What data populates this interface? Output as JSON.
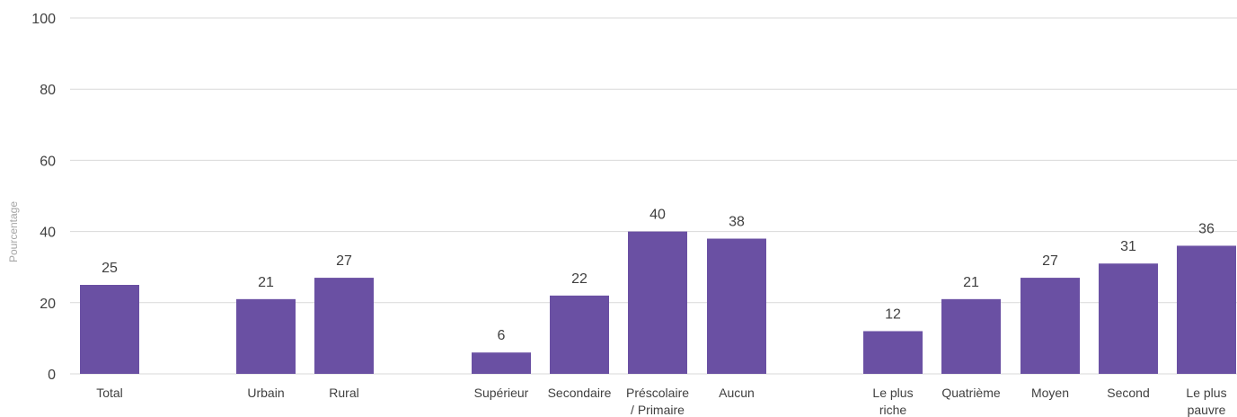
{
  "chart_data": {
    "type": "bar",
    "ylabel": "Pourcentage",
    "ylim": [
      0,
      100
    ],
    "yticks": [
      0,
      20,
      40,
      60,
      80,
      100
    ],
    "grid": true,
    "bar_color": "#6a50a3",
    "categories": [
      [
        "Total"
      ],
      [
        "Urbain"
      ],
      [
        "Rural"
      ],
      [
        "Supérieur"
      ],
      [
        "Secondaire"
      ],
      [
        "Préscolaire",
        "/ Primaire"
      ],
      [
        "Aucun"
      ],
      [
        "Le plus",
        "riche"
      ],
      [
        "Quatrième"
      ],
      [
        "Moyen"
      ],
      [
        "Second"
      ],
      [
        "Le plus",
        "pauvre"
      ]
    ],
    "values": [
      25,
      21,
      27,
      6,
      22,
      40,
      38,
      12,
      21,
      27,
      31,
      36
    ],
    "data_labels": [
      "25",
      "21",
      "27",
      "6",
      "22",
      "40",
      "38",
      "12",
      "21",
      "27",
      "31",
      "36"
    ],
    "groups": [
      [
        0
      ],
      [
        1,
        2
      ],
      [
        3,
        4,
        5,
        6
      ],
      [
        7,
        8,
        9,
        10,
        11
      ]
    ]
  }
}
